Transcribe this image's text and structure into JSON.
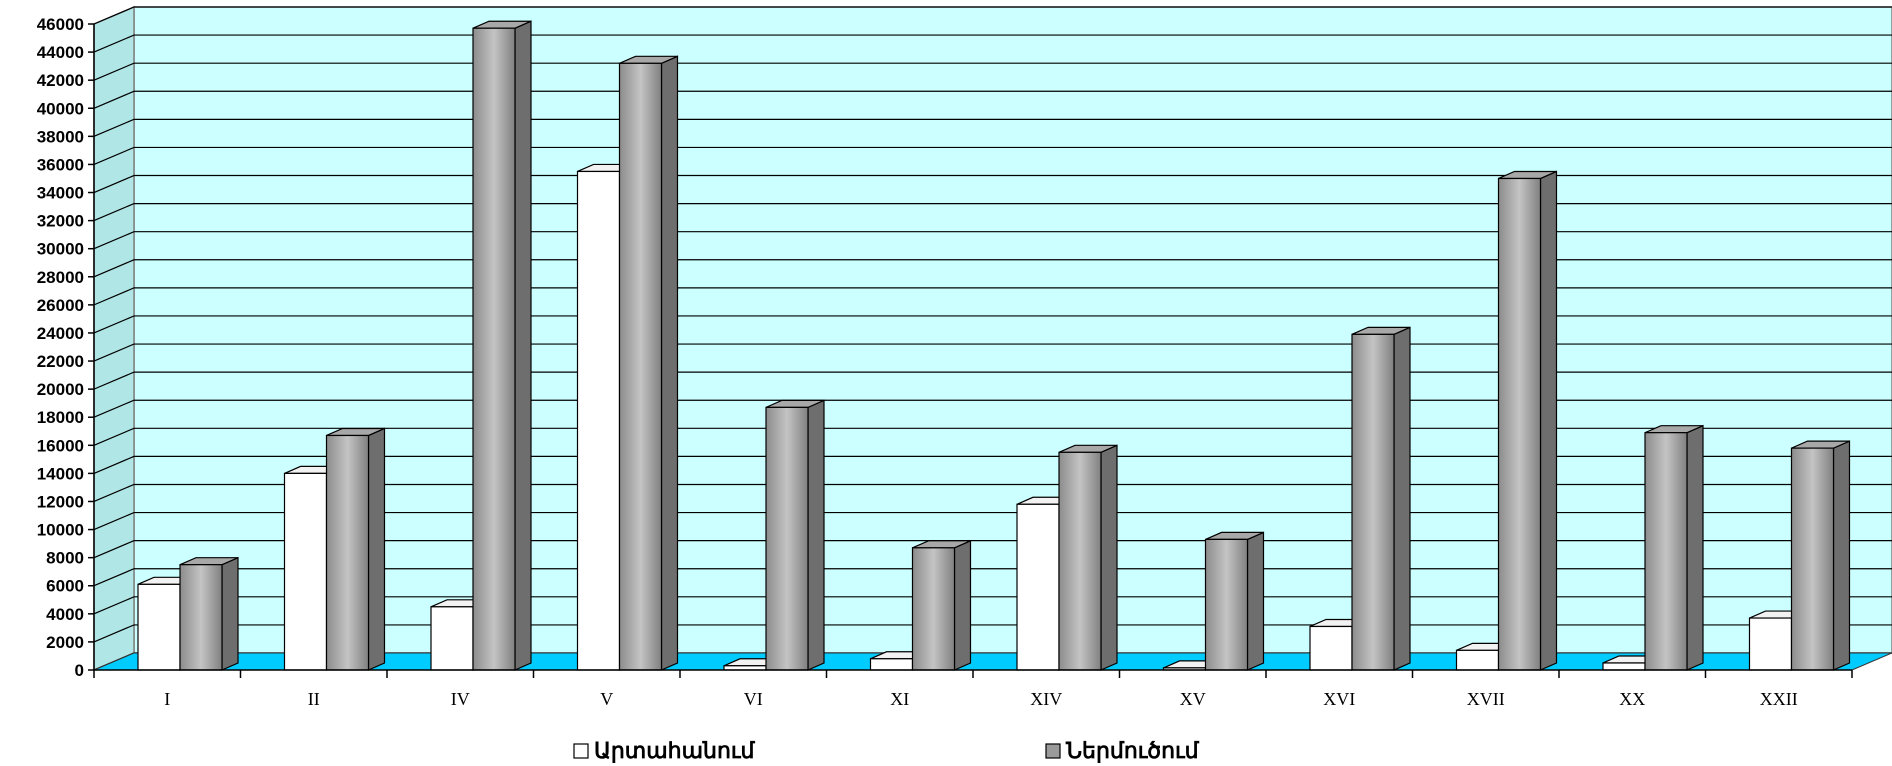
{
  "chart_data": {
    "type": "bar",
    "categories": [
      "I",
      "II",
      "IV",
      "V",
      "VI",
      "XI",
      "XIV",
      "XV",
      "XVI",
      "XVII",
      "XX",
      "XXII"
    ],
    "series": [
      {
        "name": "Արտահանում",
        "values": [
          6100,
          14000,
          4500,
          35500,
          300,
          800,
          11800,
          150,
          3100,
          1400,
          500,
          3700
        ],
        "color": "#ffffff"
      },
      {
        "name": "Ներմուծում",
        "values": [
          7500,
          16700,
          45700,
          43200,
          18700,
          8700,
          15500,
          9300,
          23900,
          35000,
          16900,
          15800
        ],
        "color": "#9a9a9a"
      }
    ],
    "ylim": [
      0,
      46000
    ],
    "ytick_step": 2000,
    "grid": true,
    "legend_position": "bottom-center",
    "background_color": "#ccffff",
    "floor_color": "#00ccff"
  }
}
